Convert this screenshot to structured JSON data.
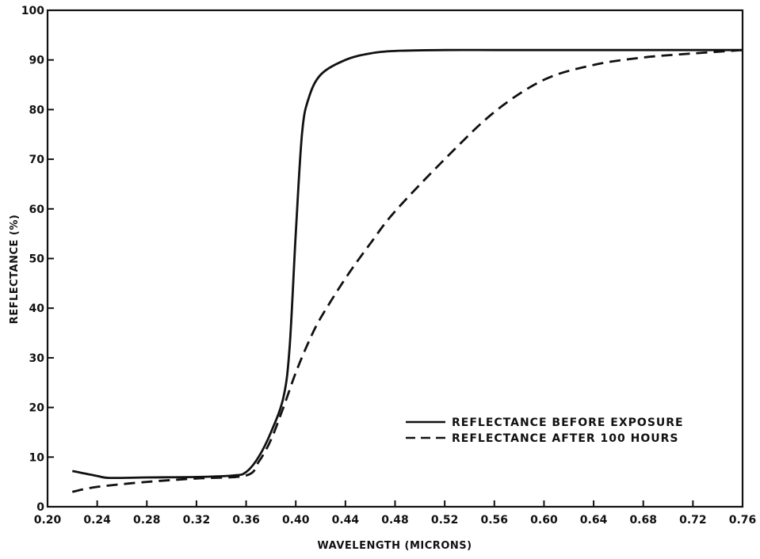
{
  "chart_data": {
    "type": "line",
    "xlabel": "WAVELENGTH (MICRONS)",
    "ylabel": "REFLECTANCE (%)",
    "xlim": [
      0.2,
      0.76
    ],
    "ylim": [
      0,
      100
    ],
    "x_ticks": [
      "0.20",
      "0.24",
      "0.28",
      "0.32",
      "0.36",
      "0.40",
      "0.44",
      "0.48",
      "0.52",
      "0.56",
      "0.60",
      "0.64",
      "0.68",
      "0.72",
      "0.76"
    ],
    "y_ticks": [
      "0",
      "10",
      "20",
      "30",
      "40",
      "50",
      "60",
      "70",
      "80",
      "90",
      "100"
    ],
    "grid": false,
    "legend_position": "lower-right",
    "series": [
      {
        "name": "REFLECTANCE BEFORE EXPOSURE",
        "style": "solid",
        "x": [
          0.22,
          0.24,
          0.25,
          0.28,
          0.32,
          0.35,
          0.36,
          0.37,
          0.38,
          0.39,
          0.395,
          0.4,
          0.405,
          0.41,
          0.42,
          0.44,
          0.46,
          0.48,
          0.52,
          0.56,
          0.6,
          0.64,
          0.68,
          0.72,
          0.76
        ],
        "y": [
          7.2,
          6.2,
          5.8,
          5.9,
          6.0,
          6.3,
          7.0,
          10.0,
          15.0,
          22.0,
          32.0,
          55.0,
          75.0,
          82.0,
          87.0,
          90.0,
          91.3,
          91.8,
          92.0,
          92.0,
          92.0,
          92.0,
          92.0,
          92.0,
          92.0
        ]
      },
      {
        "name": "REFLECTANCE AFTER 100 HOURS",
        "style": "dashed",
        "x": [
          0.22,
          0.24,
          0.28,
          0.32,
          0.36,
          0.37,
          0.38,
          0.39,
          0.4,
          0.41,
          0.42,
          0.44,
          0.46,
          0.48,
          0.52,
          0.56,
          0.6,
          0.64,
          0.68,
          0.72,
          0.76
        ],
        "y": [
          3.0,
          4.0,
          5.0,
          5.7,
          6.3,
          9.0,
          13.5,
          20.0,
          27.0,
          33.0,
          38.0,
          46.0,
          53.0,
          59.5,
          70.0,
          79.5,
          86.0,
          89.0,
          90.5,
          91.3,
          92.0
        ]
      }
    ],
    "colors": {
      "line": "#111111",
      "background": "#ffffff"
    }
  }
}
